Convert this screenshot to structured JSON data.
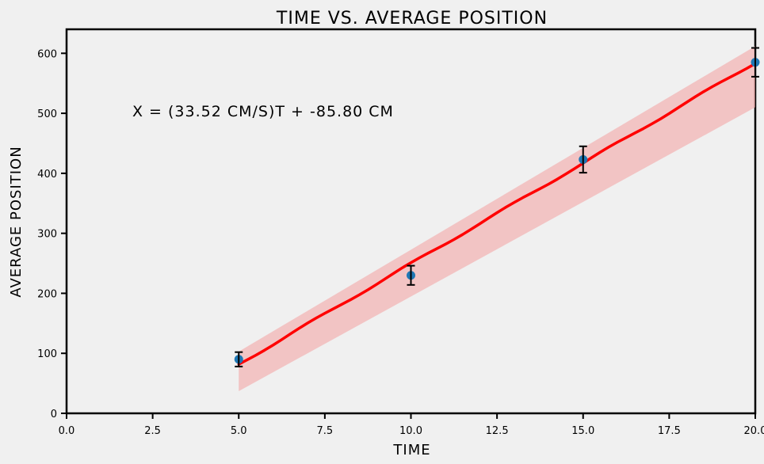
{
  "chart_data": {
    "type": "scatter",
    "title": "TIME VS. AVERAGE POSITION",
    "xlabel": "TIME",
    "ylabel": "AVERAGE POSITION",
    "xlim": [
      0,
      20.0
    ],
    "ylim": [
      0,
      640
    ],
    "xticks": [
      0.0,
      2.5,
      5.0,
      7.5,
      10.0,
      12.5,
      15.0,
      17.5,
      20.0
    ],
    "xtick_labels": [
      "0.0",
      "2.5",
      "5.0",
      "7.5",
      "10.0",
      "12.5",
      "15.0",
      "17.5",
      "20.0"
    ],
    "yticks": [
      0,
      100,
      200,
      300,
      400,
      500,
      600
    ],
    "ytick_labels": [
      "0",
      "100",
      "200",
      "300",
      "400",
      "500",
      "600"
    ],
    "grid": false,
    "annotation": "X = (33.52 CM/S)T + -85.80 CM",
    "colors": {
      "points": "#1f77b4",
      "fit": "#ff0000",
      "band": "#f4a6a6",
      "errorbar": "#000000",
      "background": "#f0f0f0"
    },
    "points": {
      "x": [
        5.0,
        10.0,
        15.0,
        20.0
      ],
      "y": [
        90,
        230,
        423,
        585
      ],
      "yerr": [
        12,
        16,
        22,
        24
      ]
    },
    "fit": {
      "slope": 33.52,
      "intercept": -85.8,
      "x_range": [
        5.0,
        20.0
      ]
    },
    "confidence_band": {
      "x": [
        5.0,
        20.0
      ],
      "lower": [
        37,
        510
      ],
      "upper": [
        103,
        612
      ]
    }
  }
}
